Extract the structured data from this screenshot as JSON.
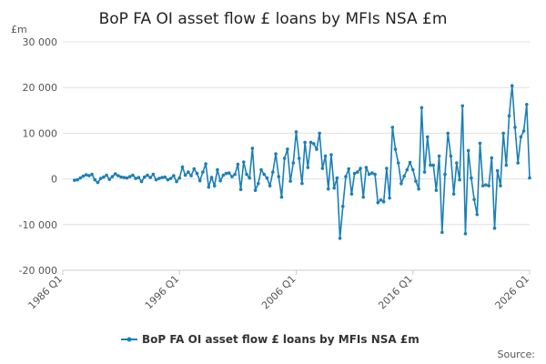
{
  "chart_data": {
    "type": "line",
    "title": "BoP FA OI asset flow £ loans by MFIs NSA £m",
    "y_label": "£m",
    "source": "Source:",
    "categories": [
      "1986 Q1",
      "1986 Q2",
      "1986 Q3",
      "1986 Q4",
      "1987 Q1",
      "1987 Q2",
      "1987 Q3",
      "1987 Q4",
      "1988 Q1",
      "1988 Q2",
      "1988 Q3",
      "1988 Q4",
      "1989 Q1",
      "1989 Q2",
      "1989 Q3",
      "1989 Q4",
      "1990 Q1",
      "1990 Q2",
      "1990 Q3",
      "1990 Q4",
      "1991 Q1",
      "1991 Q2",
      "1991 Q3",
      "1991 Q4",
      "1992 Q1",
      "1992 Q2",
      "1992 Q3",
      "1992 Q4",
      "1993 Q1",
      "1993 Q2",
      "1993 Q3",
      "1993 Q4",
      "1994 Q1",
      "1994 Q2",
      "1994 Q3",
      "1994 Q4",
      "1995 Q1",
      "1995 Q2",
      "1995 Q3",
      "1995 Q4",
      "1996 Q1",
      "1996 Q2",
      "1996 Q3",
      "1996 Q4",
      "1997 Q1",
      "1997 Q2",
      "1997 Q3",
      "1997 Q4",
      "1998 Q1",
      "1998 Q2",
      "1998 Q3",
      "1998 Q4",
      "1999 Q1",
      "1999 Q2",
      "1999 Q3",
      "1999 Q4",
      "2000 Q1",
      "2000 Q2",
      "2000 Q3",
      "2000 Q4",
      "2001 Q1",
      "2001 Q2",
      "2001 Q3",
      "2001 Q4",
      "2002 Q1",
      "2002 Q2",
      "2002 Q3",
      "2002 Q4",
      "2003 Q1",
      "2003 Q2",
      "2003 Q3",
      "2003 Q4",
      "2004 Q1",
      "2004 Q2",
      "2004 Q3",
      "2004 Q4",
      "2005 Q1",
      "2005 Q2",
      "2005 Q3",
      "2005 Q4",
      "2006 Q1",
      "2006 Q2",
      "2006 Q3",
      "2006 Q4",
      "2007 Q1",
      "2007 Q2",
      "2007 Q3",
      "2007 Q4",
      "2008 Q1",
      "2008 Q2",
      "2008 Q3",
      "2008 Q4",
      "2009 Q1",
      "2009 Q2",
      "2009 Q3",
      "2009 Q4",
      "2010 Q1",
      "2010 Q2",
      "2010 Q3",
      "2010 Q4",
      "2011 Q1",
      "2011 Q2",
      "2011 Q3",
      "2011 Q4",
      "2012 Q1",
      "2012 Q2",
      "2012 Q3",
      "2012 Q4",
      "2013 Q1",
      "2013 Q2",
      "2013 Q3",
      "2013 Q4",
      "2014 Q1",
      "2014 Q2",
      "2014 Q3",
      "2014 Q4",
      "2015 Q1",
      "2015 Q2",
      "2015 Q3",
      "2015 Q4",
      "2016 Q1",
      "2016 Q2",
      "2016 Q3",
      "2016 Q4",
      "2017 Q1",
      "2017 Q2",
      "2017 Q3",
      "2017 Q4",
      "2018 Q1",
      "2018 Q2",
      "2018 Q3",
      "2018 Q4",
      "2019 Q1",
      "2019 Q2",
      "2019 Q3",
      "2019 Q4",
      "2020 Q1",
      "2020 Q2",
      "2020 Q3",
      "2020 Q4",
      "2021 Q1",
      "2021 Q2",
      "2021 Q3",
      "2021 Q4",
      "2022 Q1",
      "2022 Q2",
      "2022 Q3",
      "2022 Q4",
      "2023 Q1",
      "2023 Q2",
      "2023 Q3",
      "2023 Q4",
      "2024 Q1",
      "2024 Q2",
      "2024 Q3",
      "2024 Q4",
      "2025 Q1",
      "2025 Q2",
      "2025 Q3",
      "2025 Q4",
      "2026 Q1"
    ],
    "series": [
      {
        "name": "BoP FA OI asset flow £ loans by MFIs NSA £m",
        "color": "#1b7fb8",
        "values": [
          null,
          null,
          null,
          null,
          -300,
          -200,
          200,
          600,
          900,
          700,
          1000,
          -200,
          -800,
          100,
          400,
          800,
          -100,
          500,
          1100,
          700,
          400,
          300,
          200,
          500,
          800,
          100,
          300,
          -600,
          400,
          800,
          300,
          1000,
          -200,
          100,
          300,
          400,
          -200,
          100,
          700,
          -600,
          200,
          2600,
          800,
          1500,
          700,
          2200,
          1200,
          -400,
          1500,
          3300,
          -1800,
          300,
          -1500,
          2000,
          -400,
          800,
          1200,
          1300,
          500,
          1000,
          3200,
          -2300,
          3700,
          1000,
          200,
          6700,
          -2500,
          -1000,
          2000,
          1000,
          200,
          -1500,
          1500,
          5500,
          500,
          -4000,
          4500,
          6500,
          -500,
          3500,
          10300,
          4500,
          -1000,
          8000,
          2500,
          8000,
          7700,
          6500,
          10000,
          2300,
          5000,
          -2200,
          5300,
          -2000,
          200,
          -13000,
          -6000,
          500,
          2200,
          -3300,
          1200,
          1500,
          2300,
          -4000,
          2500,
          1000,
          1300,
          1000,
          -5200,
          -4600,
          -5000,
          2300,
          -4200,
          11300,
          6500,
          3500,
          -1000,
          600,
          2000,
          3600,
          2000,
          -500,
          -2200,
          15600,
          1500,
          9200,
          3000,
          3000,
          -2500,
          5000,
          -11700,
          1000,
          10000,
          5000,
          -3300,
          3500,
          -200,
          16000,
          -12000,
          6200,
          200,
          -4500,
          -7800,
          7800,
          -1500,
          -1300,
          -1500,
          4600,
          -10800,
          1800,
          -1500,
          10000,
          3000,
          13800,
          20400,
          11300,
          3500,
          9200,
          10500,
          16300,
          200
        ]
      }
    ],
    "ylim": [
      -20000,
      30000
    ],
    "yticks": [
      {
        "value": -20000,
        "label": "-20 000"
      },
      {
        "value": -10000,
        "label": "-10 000"
      },
      0,
      {
        "value": 10000,
        "label": "10 000"
      },
      {
        "value": 20000,
        "label": "20 000"
      },
      {
        "value": 30000,
        "label": "30 000"
      }
    ],
    "grid": true
  }
}
